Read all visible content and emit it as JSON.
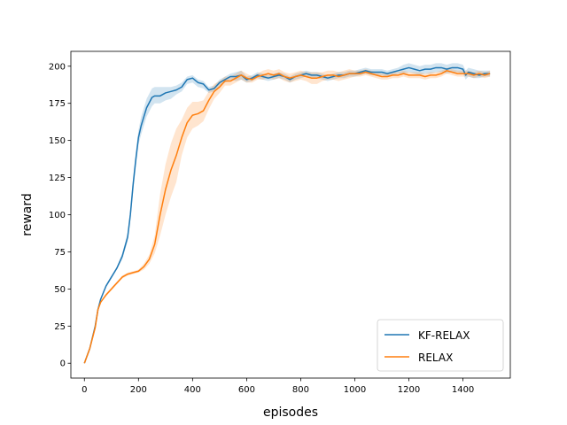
{
  "chart_data": {
    "type": "line",
    "xlabel": "episodes",
    "ylabel": "reward",
    "xlim": [
      -50,
      1575
    ],
    "ylim": [
      -10,
      210
    ],
    "xticks": [
      0,
      200,
      400,
      600,
      800,
      1000,
      1200,
      1400
    ],
    "yticks": [
      0,
      25,
      50,
      75,
      100,
      125,
      150,
      175,
      200
    ],
    "grid": false,
    "legend_position": "lower-right",
    "series": [
      {
        "name": "KF-RELAX",
        "color": "#1f77b4",
        "x": [
          0,
          20,
          40,
          50,
          60,
          80,
          100,
          120,
          140,
          160,
          170,
          180,
          190,
          200,
          210,
          220,
          230,
          250,
          260,
          280,
          300,
          320,
          340,
          360,
          380,
          400,
          420,
          440,
          460,
          480,
          500,
          520,
          540,
          560,
          580,
          600,
          620,
          640,
          660,
          680,
          700,
          720,
          740,
          760,
          780,
          800,
          820,
          840,
          860,
          880,
          900,
          920,
          940,
          960,
          980,
          1000,
          1020,
          1040,
          1060,
          1080,
          1100,
          1120,
          1140,
          1160,
          1180,
          1200,
          1220,
          1240,
          1260,
          1280,
          1300,
          1320,
          1340,
          1360,
          1380,
          1400,
          1410,
          1420,
          1440,
          1460,
          1480,
          1500
        ],
        "y": [
          0,
          10,
          25,
          36,
          43,
          52,
          58,
          64,
          72,
          85,
          100,
          120,
          137,
          152,
          160,
          166,
          172,
          179,
          180,
          180,
          182,
          183,
          184,
          186,
          191,
          192,
          189,
          188,
          184,
          185,
          189,
          191,
          193,
          193,
          194,
          191,
          192,
          194,
          193,
          192,
          193,
          194,
          193,
          191,
          193,
          194,
          195,
          194,
          194,
          193,
          192,
          193,
          194,
          194,
          195,
          195,
          196,
          197,
          196,
          196,
          196,
          195,
          196,
          197,
          198,
          199,
          198,
          197,
          198,
          198,
          199,
          199,
          198,
          199,
          199,
          198,
          194,
          196,
          195,
          194,
          195,
          195
        ],
        "band_low": [
          0,
          10,
          25,
          36,
          43,
          51,
          57,
          63,
          70,
          82,
          96,
          115,
          132,
          147,
          154,
          160,
          166,
          173,
          175,
          175,
          177,
          178,
          181,
          183,
          188,
          189,
          186,
          185,
          182,
          183,
          187,
          189,
          191,
          190,
          191,
          189,
          190,
          192,
          191,
          190,
          191,
          192,
          191,
          189,
          191,
          192,
          193,
          192,
          192,
          191,
          190,
          191,
          192,
          192,
          193,
          193,
          194,
          195,
          194,
          194,
          194,
          193,
          194,
          195,
          195,
          196,
          195,
          194,
          195,
          195,
          196,
          196,
          195,
          196,
          196,
          195,
          191,
          193,
          192,
          192,
          193,
          193
        ],
        "band_high": [
          0,
          10,
          25,
          36,
          43,
          53,
          59,
          65,
          74,
          88,
          104,
          125,
          142,
          157,
          166,
          172,
          178,
          185,
          186,
          186,
          186,
          186,
          187,
          189,
          193,
          194,
          191,
          190,
          186,
          187,
          191,
          193,
          195,
          196,
          197,
          193,
          194,
          196,
          195,
          194,
          195,
          196,
          195,
          193,
          195,
          196,
          197,
          196,
          196,
          195,
          194,
          195,
          196,
          196,
          197,
          197,
          198,
          199,
          198,
          198,
          198,
          197,
          198,
          199,
          201,
          202,
          201,
          200,
          201,
          201,
          202,
          202,
          201,
          202,
          202,
          201,
          197,
          199,
          198,
          197,
          197,
          197
        ]
      },
      {
        "name": "RELAX",
        "color": "#ff7f0e",
        "x": [
          0,
          20,
          40,
          50,
          60,
          80,
          100,
          120,
          140,
          160,
          180,
          200,
          220,
          240,
          260,
          280,
          300,
          320,
          340,
          360,
          380,
          400,
          420,
          440,
          460,
          480,
          500,
          520,
          540,
          560,
          580,
          600,
          620,
          640,
          660,
          680,
          700,
          720,
          740,
          760,
          780,
          800,
          820,
          840,
          860,
          880,
          900,
          920,
          940,
          960,
          980,
          1000,
          1020,
          1040,
          1060,
          1080,
          1100,
          1120,
          1140,
          1160,
          1180,
          1200,
          1220,
          1240,
          1260,
          1280,
          1300,
          1320,
          1340,
          1360,
          1380,
          1400,
          1420,
          1440,
          1460,
          1480,
          1500
        ],
        "y": [
          0,
          10,
          24,
          36,
          41,
          46,
          50,
          54,
          58,
          60,
          61,
          62,
          65,
          70,
          80,
          100,
          117,
          130,
          140,
          152,
          162,
          167,
          168,
          170,
          177,
          183,
          186,
          190,
          190,
          192,
          194,
          192,
          191,
          193,
          194,
          195,
          194,
          195,
          193,
          192,
          193,
          194,
          193,
          192,
          192,
          193,
          194,
          194,
          193,
          194,
          195,
          195,
          195,
          196,
          195,
          194,
          193,
          193,
          194,
          194,
          195,
          194,
          194,
          194,
          193,
          194,
          194,
          195,
          197,
          196,
          195,
          195,
          195,
          194,
          195,
          194,
          195
        ],
        "band_low": [
          0,
          10,
          24,
          36,
          41,
          45,
          49,
          53,
          57,
          59,
          60,
          61,
          63,
          67,
          74,
          86,
          100,
          112,
          122,
          140,
          152,
          158,
          160,
          163,
          171,
          178,
          182,
          187,
          187,
          189,
          191,
          189,
          189,
          191,
          191,
          192,
          191,
          192,
          190,
          189,
          190,
          191,
          190,
          188,
          188,
          190,
          191,
          191,
          190,
          191,
          192,
          193,
          193,
          194,
          193,
          192,
          191,
          191,
          192,
          192,
          193,
          192,
          192,
          192,
          191,
          192,
          192,
          193,
          195,
          194,
          193,
          193,
          193,
          192,
          193,
          192,
          193
        ],
        "band_high": [
          0,
          10,
          24,
          36,
          41,
          47,
          51,
          55,
          59,
          61,
          62,
          63,
          67,
          73,
          86,
          114,
          134,
          148,
          158,
          164,
          172,
          176,
          176,
          177,
          183,
          188,
          190,
          193,
          193,
          195,
          197,
          195,
          193,
          195,
          197,
          198,
          197,
          198,
          196,
          195,
          196,
          197,
          196,
          196,
          196,
          196,
          197,
          197,
          196,
          197,
          198,
          197,
          197,
          198,
          197,
          196,
          195,
          195,
          196,
          196,
          197,
          196,
          196,
          196,
          195,
          196,
          196,
          197,
          199,
          198,
          197,
          197,
          197,
          196,
          197,
          196,
          197
        ]
      }
    ]
  }
}
